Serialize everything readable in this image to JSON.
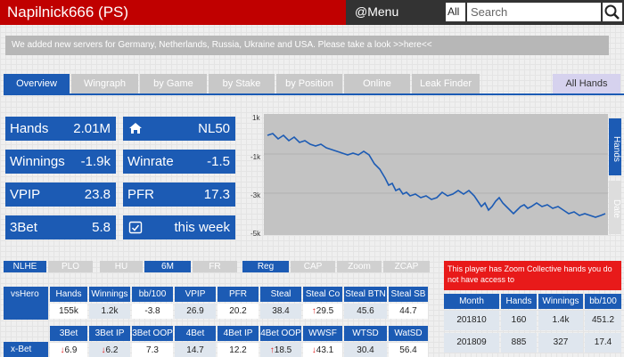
{
  "header": {
    "title": "Napilnick666 (PS)",
    "menu_label": "@Menu",
    "search_scope": "All",
    "search_placeholder": "Search"
  },
  "notice": "We added new servers for Germany, Netherlands, Russia, Ukraine and USA. Please take a look >>here<<",
  "tabs": [
    "Overview",
    "Wingraph",
    "by Game",
    "by Stake",
    "by Position",
    "Online",
    "Leak Finder",
    "All Hands"
  ],
  "stats": {
    "hands_label": "Hands",
    "hands_value": "2.01M",
    "stake_value": "NL50",
    "winnings_label": "Winnings",
    "winnings_value": "-1.9k",
    "winrate_label": "Winrate",
    "winrate_value": "-1.5",
    "vpip_label": "VPIP",
    "vpip_value": "23.8",
    "pfr_label": "PFR",
    "pfr_value": "17.3",
    "threebet_label": "3Bet",
    "threebet_value": "5.8",
    "period_value": "this week"
  },
  "graph": {
    "y_ticks": [
      "1k",
      "-1k",
      "-3k",
      "-5k"
    ],
    "side_tab_active": "Hands",
    "side_tab_inactive": "Date",
    "line_color": "#1c5bb4"
  },
  "filters": {
    "game": [
      "NLHE",
      "PLO"
    ],
    "mode": [
      "HU",
      "6M",
      "FR"
    ],
    "pool": [
      "Reg",
      "CAP",
      "Zoom",
      "ZCAP"
    ]
  },
  "vshero": {
    "row_label": "vsHero",
    "headers": [
      "Hands",
      "Winnings",
      "bb/100",
      "VPIP",
      "PFR",
      "Steal",
      "Steal Co",
      "Steal BTN",
      "Steal SB"
    ],
    "values": [
      "155k",
      "1.2k",
      "-3.8",
      "26.9",
      "20.2",
      "38.4",
      "29.5",
      "45.6",
      "44.7"
    ]
  },
  "xbet": {
    "row_label": "x-Bet",
    "headers": [
      "3Bet",
      "3Bet IP",
      "3Bet OOP",
      "4Bet",
      "4Bet IP",
      "4Bet OOP",
      "WWSF",
      "WTSD",
      "WatSD"
    ],
    "values": [
      "6.9",
      "6.2",
      "7.3",
      "14.7",
      "12.2",
      "18.5",
      "43.1",
      "30.4",
      "56.4"
    ]
  },
  "zoom_message": "This player has Zoom Collective hands you do not have access to",
  "months": {
    "headers": [
      "Month",
      "Hands",
      "Winnings",
      "bb/100"
    ],
    "rows": [
      [
        "201810",
        "160",
        "1.4k",
        "451.2"
      ],
      [
        "201809",
        "885",
        "327",
        "17.4"
      ]
    ]
  }
}
